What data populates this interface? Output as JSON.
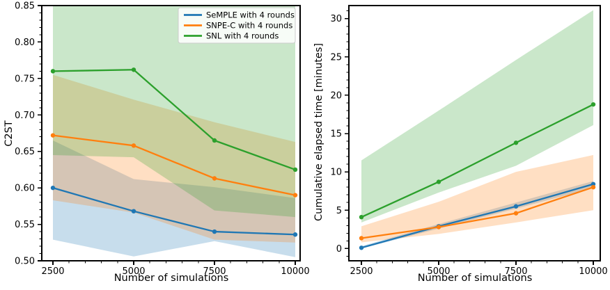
{
  "figure": {
    "background": "#ffffff",
    "text_color": "#000000",
    "legend_border_color": "#cccccc",
    "legend_background": "#ffffff"
  },
  "chart_data": [
    {
      "id": "c2st-vs-simulations",
      "type": "line",
      "title": "",
      "xlabel": "Number of simulations",
      "ylabel": "C2ST",
      "x": [
        2500,
        5000,
        7500,
        10000
      ],
      "xtick_labels": [
        "2500",
        "5000",
        "7500",
        "10000"
      ],
      "ylim": [
        0.5,
        0.85
      ],
      "yticks": [
        0.5,
        0.55,
        0.6,
        0.65,
        0.7,
        0.75,
        0.8,
        0.85
      ],
      "ytick_labels": [
        "0.50",
        "0.55",
        "0.60",
        "0.65",
        "0.70",
        "0.75",
        "0.80",
        "0.85"
      ],
      "minor_x_step": 500,
      "minor_y_step": 0.01,
      "grid": false,
      "legend_visible": true,
      "legend_position": "upper right",
      "series": [
        {
          "name": "SeMPLE with 4 rounds",
          "color": "#1f77b4",
          "values": [
            0.6,
            0.568,
            0.54,
            0.536
          ],
          "band_low": [
            0.529,
            0.506,
            0.527,
            0.505
          ],
          "band_high": [
            0.665,
            0.612,
            0.601,
            0.586
          ]
        },
        {
          "name": "SNPE-C with 4 rounds",
          "color": "#ff7f0e",
          "values": [
            0.672,
            0.658,
            0.613,
            0.59
          ],
          "band_low": [
            0.583,
            0.566,
            0.529,
            0.525
          ],
          "band_high": [
            0.755,
            0.721,
            0.69,
            0.663
          ]
        },
        {
          "name": "SNL with 4 rounds",
          "color": "#2ca02c",
          "values": [
            0.76,
            0.762,
            0.665,
            0.625
          ],
          "band_low": [
            0.645,
            0.642,
            0.569,
            0.56
          ],
          "band_high": [
            0.87,
            0.87,
            0.87,
            0.87
          ]
        }
      ]
    },
    {
      "id": "elapsed-time-vs-simulations",
      "type": "line",
      "title": "",
      "xlabel": "Number of simulations",
      "ylabel": "Cumulative elapsed time [minutes]",
      "x": [
        2500,
        5000,
        7500,
        10000
      ],
      "xtick_labels": [
        "2500",
        "5000",
        "7500",
        "10000"
      ],
      "ylim": [
        -1.6,
        31.7
      ],
      "yticks": [
        0,
        5,
        10,
        15,
        20,
        25,
        30
      ],
      "ytick_labels": [
        "0",
        "5",
        "10",
        "15",
        "20",
        "25",
        "30"
      ],
      "minor_x_step": 500,
      "minor_y_step": 1,
      "grid": false,
      "legend_visible": false,
      "legend_position": null,
      "series": [
        {
          "name": "SeMPLE with 4 rounds",
          "color": "#1f77b4",
          "values": [
            0.1,
            2.9,
            5.5,
            8.4
          ],
          "band_low": [
            0.0,
            2.6,
            5.2,
            7.9
          ],
          "band_high": [
            0.3,
            3.2,
            6.0,
            8.8
          ]
        },
        {
          "name": "SNPE-C with 4 rounds",
          "color": "#ff7f0e",
          "values": [
            1.35,
            2.8,
            4.6,
            8.0
          ],
          "band_low": [
            0.8,
            1.9,
            3.4,
            5.0
          ],
          "band_high": [
            2.9,
            6.1,
            10.0,
            12.2
          ]
        },
        {
          "name": "SNL with 4 rounds",
          "color": "#2ca02c",
          "values": [
            4.1,
            8.7,
            13.8,
            18.8
          ],
          "band_low": [
            3.4,
            7.3,
            10.8,
            16.1
          ],
          "band_high": [
            11.5,
            18.0,
            24.6,
            31.1
          ]
        }
      ]
    }
  ],
  "legend": {
    "entries": [
      "SeMPLE with 4 rounds",
      "SNPE-C with 4 rounds",
      "SNL with 4 rounds"
    ]
  }
}
